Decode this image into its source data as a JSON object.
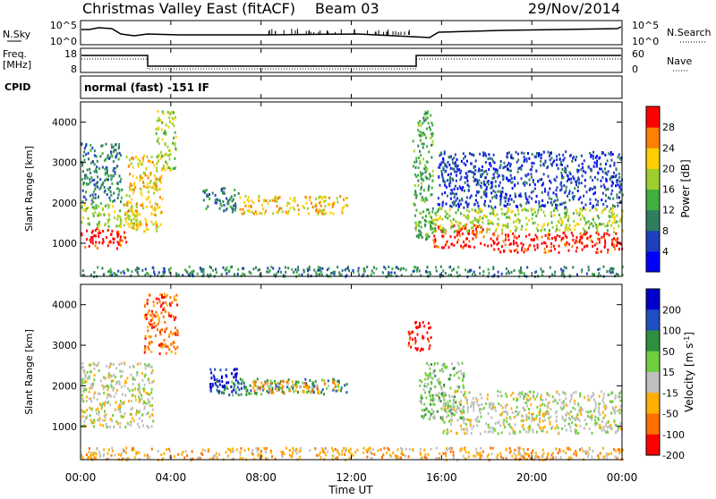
{
  "header": {
    "title": "Christmas Valley East (fitACF)",
    "beam": "Beam 03",
    "date": "29/Nov/2014"
  },
  "nsky_panel": {
    "left_label": "N.Sky",
    "right_label": "N.Search",
    "left_ticks": [
      "10^5",
      "10^0"
    ],
    "right_ticks": [
      "10^5",
      "10^0"
    ]
  },
  "freq_panel": {
    "left_label_line1": "Freq.",
    "left_label_line2": "[MHz]",
    "right_label": "Nave",
    "left_ticks": [
      "18",
      "8"
    ],
    "right_ticks": [
      "60",
      "0"
    ]
  },
  "cpid": {
    "label": "CPID",
    "value": "normal (fast) -151 IF"
  },
  "chart_data": [
    {
      "type": "heatmap",
      "name": "Power",
      "ylabel": "Slant Range [km]",
      "xlabel": "Time UT",
      "x_ticks": [
        "00:00",
        "04:00",
        "08:00",
        "12:00",
        "16:00",
        "20:00",
        "00:00"
      ],
      "xlim_hours": [
        0,
        24
      ],
      "y_ticks": [
        1000,
        2000,
        3000,
        4000
      ],
      "ylim": [
        180,
        4500
      ],
      "colorbar": {
        "label": "Power [dB]",
        "ticks": [
          "4",
          "8",
          "12",
          "16",
          "20",
          "24",
          "28"
        ],
        "colors": [
          "#0000ff",
          "#1f3fbf",
          "#2f7f5f",
          "#3faf3f",
          "#9fcf2f",
          "#ffcf00",
          "#ff7f00",
          "#ff0000"
        ]
      },
      "bands": [
        {
          "t0": 0.0,
          "t1": 2.0,
          "r0": 900,
          "r1": 1400,
          "level": 7
        },
        {
          "t0": 0.0,
          "t1": 2.5,
          "r0": 1400,
          "r1": 2000,
          "level": 4
        },
        {
          "t0": 0.0,
          "t1": 1.8,
          "r0": 2000,
          "r1": 3500,
          "level": 2
        },
        {
          "t0": 2.0,
          "t1": 3.6,
          "r0": 1300,
          "r1": 3200,
          "level": 5
        },
        {
          "t0": 3.3,
          "t1": 4.2,
          "r0": 2800,
          "r1": 4300,
          "level": 4
        },
        {
          "t0": 5.4,
          "t1": 7.0,
          "r0": 1800,
          "r1": 2400,
          "level": 2
        },
        {
          "t0": 7.0,
          "t1": 11.8,
          "r0": 1750,
          "r1": 2200,
          "level": 5
        },
        {
          "t0": 14.7,
          "t1": 15.6,
          "r0": 1100,
          "r1": 4300,
          "level": 3
        },
        {
          "t0": 15.6,
          "t1": 18.0,
          "r0": 900,
          "r1": 1500,
          "level": 7
        },
        {
          "t0": 18.0,
          "t1": 24.0,
          "r0": 800,
          "r1": 1300,
          "level": 7
        },
        {
          "t0": 15.6,
          "t1": 24.0,
          "r0": 1300,
          "r1": 1900,
          "level": 4
        },
        {
          "t0": 15.8,
          "t1": 24.0,
          "r0": 1900,
          "r1": 3300,
          "level": 1
        },
        {
          "t0": 0.0,
          "t1": 24.0,
          "r0": 200,
          "r1": 450,
          "level": 2
        }
      ]
    },
    {
      "type": "heatmap",
      "name": "Velocity",
      "ylabel": "Slant Range [km]",
      "xlabel": "Time UT",
      "x_ticks": [
        "00:00",
        "04:00",
        "08:00",
        "12:00",
        "16:00",
        "20:00",
        "00:00"
      ],
      "xlim_hours": [
        0,
        24
      ],
      "y_ticks": [
        1000,
        2000,
        3000,
        4000
      ],
      "ylim": [
        180,
        4500
      ],
      "colorbar": {
        "label": "Velocity [m s^-1]",
        "ticks": [
          "200",
          "100",
          "50",
          "15",
          "-15",
          "-50",
          "-100",
          "-200"
        ],
        "colors": [
          "#0000cc",
          "#1f4fbf",
          "#2f8f3f",
          "#6fcf3f",
          "#c0c0c0",
          "#ffaf00",
          "#ff6f00",
          "#ff0000"
        ]
      },
      "bands": [
        {
          "t0": 0.0,
          "t1": 3.2,
          "r0": 1000,
          "r1": 2600,
          "level": 4
        },
        {
          "t0": 2.8,
          "t1": 4.3,
          "r0": 2800,
          "r1": 4300,
          "level": 6
        },
        {
          "t0": 5.6,
          "t1": 7.0,
          "r0": 1850,
          "r1": 2450,
          "level": 0
        },
        {
          "t0": 6.0,
          "t1": 11.8,
          "r0": 1800,
          "r1": 2200,
          "level": 2
        },
        {
          "t0": 7.5,
          "t1": 11.5,
          "r0": 1850,
          "r1": 2150,
          "level": 5
        },
        {
          "t0": 14.5,
          "t1": 15.5,
          "r0": 2900,
          "r1": 3600,
          "level": 7
        },
        {
          "t0": 15.0,
          "t1": 17.0,
          "r0": 1200,
          "r1": 2600,
          "level": 3
        },
        {
          "t0": 16.0,
          "t1": 24.0,
          "r0": 850,
          "r1": 1900,
          "level": 4
        },
        {
          "t0": 0.0,
          "t1": 24.0,
          "r0": 200,
          "r1": 500,
          "level": 5
        }
      ]
    }
  ]
}
